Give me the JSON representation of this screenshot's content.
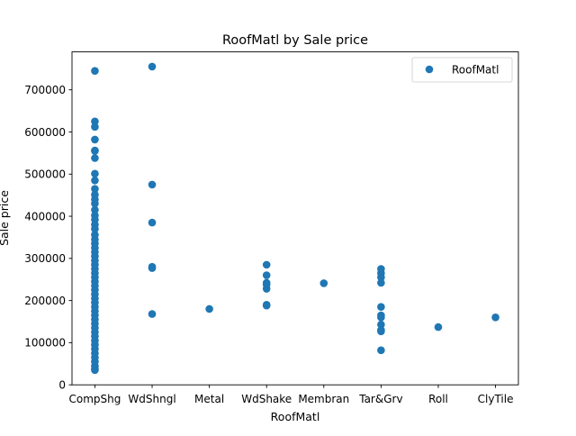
{
  "chart_data": {
    "type": "scatter",
    "title": "RoofMatl by Sale price",
    "xlabel": "RoofMatl",
    "ylabel": "Sale price",
    "categories": [
      "CompShg",
      "WdShngl",
      "Metal",
      "WdShake",
      "Membran",
      "Tar&Grv",
      "Roll",
      "ClyTile"
    ],
    "ylim": [
      0,
      790000
    ],
    "yticks": [
      0,
      100000,
      200000,
      300000,
      400000,
      500000,
      600000,
      700000
    ],
    "ytick_labels": [
      "0",
      "100000",
      "200000",
      "300000",
      "400000",
      "500000",
      "600000",
      "700000"
    ],
    "grid": false,
    "legend": {
      "position": "top-right",
      "entries": [
        "RoofMatl"
      ]
    },
    "marker_color": "#1f77b4",
    "series": [
      {
        "name": "RoofMatl",
        "points": [
          {
            "x": "CompShg",
            "y": 745000
          },
          {
            "x": "CompShg",
            "y": 625000
          },
          {
            "x": "CompShg",
            "y": 612000
          },
          {
            "x": "CompShg",
            "y": 582000
          },
          {
            "x": "CompShg",
            "y": 556000
          },
          {
            "x": "CompShg",
            "y": 555000
          },
          {
            "x": "CompShg",
            "y": 538000
          },
          {
            "x": "CompShg",
            "y": 501000
          },
          {
            "x": "CompShg",
            "y": 485000
          },
          {
            "x": "CompShg",
            "y": 465000
          },
          {
            "x": "CompShg",
            "y": 451000
          },
          {
            "x": "CompShg",
            "y": 440000
          },
          {
            "x": "CompShg",
            "y": 430000
          },
          {
            "x": "CompShg",
            "y": 415000
          },
          {
            "x": "CompShg",
            "y": 402000
          },
          {
            "x": "CompShg",
            "y": 392000
          },
          {
            "x": "CompShg",
            "y": 380000
          },
          {
            "x": "CompShg",
            "y": 370000
          },
          {
            "x": "CompShg",
            "y": 356000
          },
          {
            "x": "CompShg",
            "y": 345000
          },
          {
            "x": "CompShg",
            "y": 335000
          },
          {
            "x": "CompShg",
            "y": 325000
          },
          {
            "x": "CompShg",
            "y": 315000
          },
          {
            "x": "CompShg",
            "y": 305000
          },
          {
            "x": "CompShg",
            "y": 295000
          },
          {
            "x": "CompShg",
            "y": 285000
          },
          {
            "x": "CompShg",
            "y": 275000
          },
          {
            "x": "CompShg",
            "y": 265000
          },
          {
            "x": "CompShg",
            "y": 255000
          },
          {
            "x": "CompShg",
            "y": 245000
          },
          {
            "x": "CompShg",
            "y": 235000
          },
          {
            "x": "CompShg",
            "y": 225000
          },
          {
            "x": "CompShg",
            "y": 215000
          },
          {
            "x": "CompShg",
            "y": 205000
          },
          {
            "x": "CompShg",
            "y": 195000
          },
          {
            "x": "CompShg",
            "y": 185000
          },
          {
            "x": "CompShg",
            "y": 175000
          },
          {
            "x": "CompShg",
            "y": 165000
          },
          {
            "x": "CompShg",
            "y": 155000
          },
          {
            "x": "CompShg",
            "y": 145000
          },
          {
            "x": "CompShg",
            "y": 135000
          },
          {
            "x": "CompShg",
            "y": 125000
          },
          {
            "x": "CompShg",
            "y": 115000
          },
          {
            "x": "CompShg",
            "y": 105000
          },
          {
            "x": "CompShg",
            "y": 95000
          },
          {
            "x": "CompShg",
            "y": 85000
          },
          {
            "x": "CompShg",
            "y": 75000
          },
          {
            "x": "CompShg",
            "y": 65000
          },
          {
            "x": "CompShg",
            "y": 55000
          },
          {
            "x": "CompShg",
            "y": 45000
          },
          {
            "x": "CompShg",
            "y": 38000
          },
          {
            "x": "CompShg",
            "y": 35000
          },
          {
            "x": "WdShngl",
            "y": 755000
          },
          {
            "x": "WdShngl",
            "y": 475000
          },
          {
            "x": "WdShngl",
            "y": 385000
          },
          {
            "x": "WdShngl",
            "y": 280000
          },
          {
            "x": "WdShngl",
            "y": 277000
          },
          {
            "x": "WdShngl",
            "y": 168000
          },
          {
            "x": "Metal",
            "y": 180000
          },
          {
            "x": "WdShake",
            "y": 285000
          },
          {
            "x": "WdShake",
            "y": 260000
          },
          {
            "x": "WdShake",
            "y": 242000
          },
          {
            "x": "WdShake",
            "y": 238000
          },
          {
            "x": "WdShake",
            "y": 228000
          },
          {
            "x": "WdShake",
            "y": 190000
          },
          {
            "x": "WdShake",
            "y": 188000
          },
          {
            "x": "Membran",
            "y": 241000
          },
          {
            "x": "Tar&Grv",
            "y": 275000
          },
          {
            "x": "Tar&Grv",
            "y": 265000
          },
          {
            "x": "Tar&Grv",
            "y": 255000
          },
          {
            "x": "Tar&Grv",
            "y": 242000
          },
          {
            "x": "Tar&Grv",
            "y": 185000
          },
          {
            "x": "Tar&Grv",
            "y": 165000
          },
          {
            "x": "Tar&Grv",
            "y": 160000
          },
          {
            "x": "Tar&Grv",
            "y": 143000
          },
          {
            "x": "Tar&Grv",
            "y": 130000
          },
          {
            "x": "Tar&Grv",
            "y": 127000
          },
          {
            "x": "Tar&Grv",
            "y": 82000
          },
          {
            "x": "Roll",
            "y": 137000
          },
          {
            "x": "ClyTile",
            "y": 160000
          }
        ]
      }
    ]
  }
}
